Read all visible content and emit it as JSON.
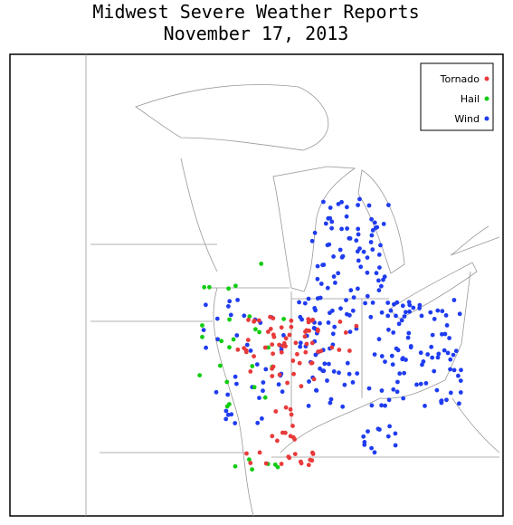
{
  "title": "Midwest Severe Weather Reports",
  "subtitle": "November 17, 2013",
  "legend": [
    {
      "label": "Tornado",
      "color": "#e83a3a"
    },
    {
      "label": "Hail",
      "color": "#10cc10"
    },
    {
      "label": "Wind",
      "color": "#1f3cf0"
    }
  ]
}
